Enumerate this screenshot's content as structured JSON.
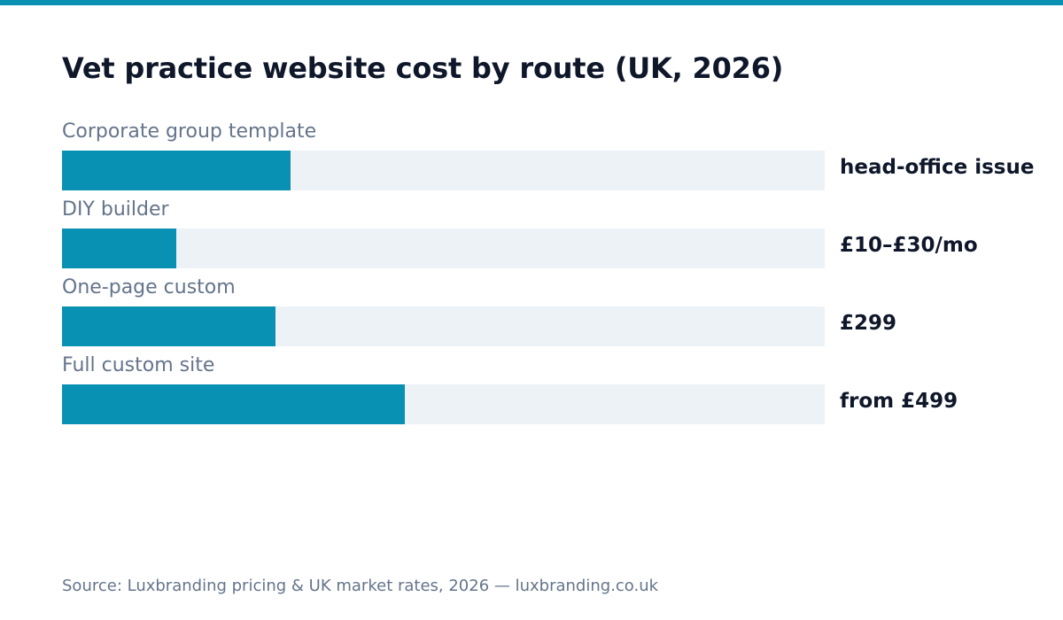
{
  "colors": {
    "accent": "#0891b2",
    "track": "#edf2f7",
    "title": "#0f172a",
    "label": "#64748b"
  },
  "chart_data": {
    "type": "bar",
    "orientation": "horizontal",
    "title": "Vet practice website cost by route (UK, 2026)",
    "xlabel": "",
    "ylabel": "",
    "xlim": [
      0,
      1
    ],
    "grid": false,
    "categories": [
      "Corporate group template",
      "DIY builder",
      "One-page custom",
      "Full custom site"
    ],
    "values": [
      0.3,
      0.15,
      0.28,
      0.45
    ],
    "value_labels": [
      "head-office issue",
      "£10–£30/mo",
      "£299",
      "from £499"
    ]
  },
  "footer": {
    "source": "Source: Luxbranding pricing & UK market rates, 2026 — luxbranding.co.uk"
  }
}
